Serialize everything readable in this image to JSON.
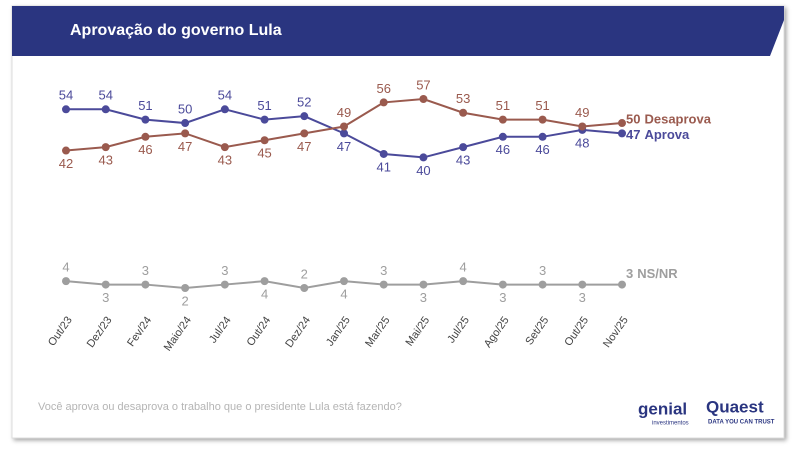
{
  "chart_data": {
    "type": "line",
    "title": "Aprovação do governo Lula",
    "categories": [
      "Out/23",
      "Dez/23",
      "Fev/24",
      "Maio/24",
      "Jul/24",
      "Out/24",
      "Dez/24",
      "Jan/25",
      "Mar/25",
      "Mai/25",
      "Jul/25",
      "Ago/25",
      "Set/25",
      "Out/25",
      "Nov/25"
    ],
    "series": [
      {
        "name": "Aprova",
        "color": "#4b4a9a",
        "values": [
          54,
          54,
          51,
          50,
          54,
          51,
          52,
          47,
          41,
          40,
          43,
          46,
          46,
          48,
          47
        ]
      },
      {
        "name": "Desaprova",
        "color": "#9a5a4e",
        "values": [
          42,
          43,
          46,
          47,
          43,
          45,
          47,
          49,
          56,
          57,
          53,
          51,
          51,
          49,
          50
        ]
      },
      {
        "name": "NS/NR",
        "color": "#9e9e9e",
        "values": [
          4,
          3,
          3,
          2,
          3,
          4,
          2,
          4,
          3,
          3,
          4,
          3,
          3,
          3,
          3
        ]
      }
    ]
  },
  "footer": {
    "question": "Você aprova ou desaprova o trabalho que o presidente Lula está fazendo?",
    "logo1": "genial",
    "logo1_sub": "investimentos",
    "logo2": "Quaest",
    "logo2_sub": "DATA YOU CAN TRUST"
  }
}
